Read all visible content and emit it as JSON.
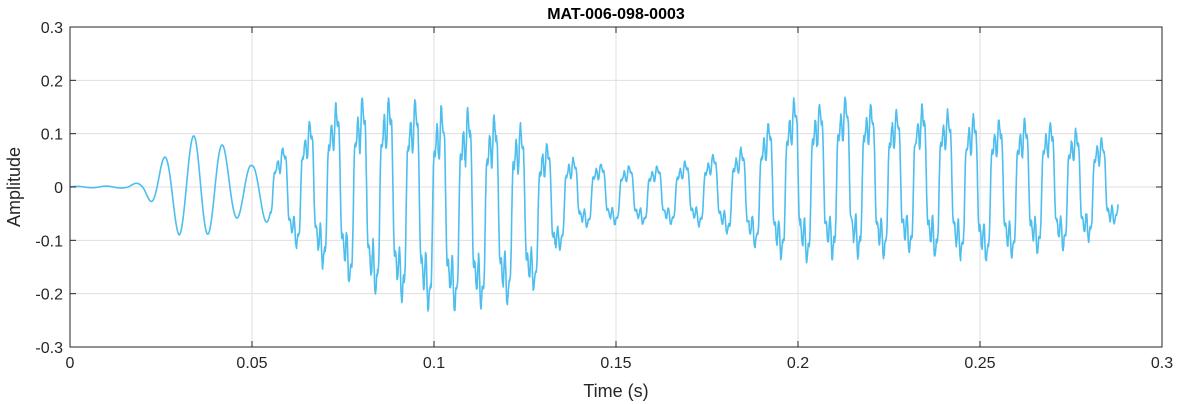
{
  "chart_data": {
    "type": "line",
    "title": "MAT-006-098-0003",
    "xlabel": "Time (s)",
    "ylabel": "Amplitude",
    "xlim": [
      0,
      0.3
    ],
    "ylim": [
      -0.3,
      0.3
    ],
    "grid": true,
    "line_color": "#4DBEEE",
    "x_ticks": [
      0,
      0.05,
      0.1,
      0.15,
      0.2,
      0.25,
      0.3
    ],
    "x_tick_labels": [
      "0",
      "0.05",
      "0.1",
      "0.15",
      "0.2",
      "0.25",
      "0.3"
    ],
    "y_ticks": [
      -0.3,
      -0.2,
      -0.1,
      0,
      0.1,
      0.2,
      0.3
    ],
    "y_tick_labels": [
      "-0.3",
      "-0.2",
      "-0.1",
      "0",
      "0.1",
      "0.2",
      "0.3"
    ],
    "series": [
      {
        "envelope": {
          "t": [
            0,
            0.015,
            0.02,
            0.025,
            0.03,
            0.035,
            0.04,
            0.045,
            0.05,
            0.055,
            0.06,
            0.065,
            0.07,
            0.075,
            0.08,
            0.085,
            0.09,
            0.095,
            0.1,
            0.105,
            0.11,
            0.115,
            0.12,
            0.125,
            0.13,
            0.135,
            0.14,
            0.145,
            0.15,
            0.155,
            0.16,
            0.165,
            0.17,
            0.175,
            0.18,
            0.185,
            0.19,
            0.195,
            0.2,
            0.205,
            0.21,
            0.215,
            0.22,
            0.225,
            0.23,
            0.235,
            0.24,
            0.245,
            0.25,
            0.255,
            0.26,
            0.265,
            0.27,
            0.275,
            0.28,
            0.285,
            0.288
          ],
          "upper": [
            0.001,
            0.002,
            0.01,
            0.05,
            0.08,
            0.1,
            0.09,
            0.06,
            0.04,
            0.06,
            0.1,
            0.14,
            0.17,
            0.19,
            0.2,
            0.21,
            0.2,
            0.2,
            0.19,
            0.18,
            0.18,
            0.17,
            0.16,
            0.14,
            0.11,
            0.08,
            0.06,
            0.055,
            0.05,
            0.05,
            0.05,
            0.05,
            0.06,
            0.07,
            0.08,
            0.09,
            0.13,
            0.16,
            0.2,
            0.18,
            0.19,
            0.2,
            0.18,
            0.17,
            0.17,
            0.18,
            0.17,
            0.16,
            0.16,
            0.15,
            0.15,
            0.15,
            0.14,
            0.13,
            0.12,
            0.1,
            0.05
          ],
          "lower": [
            -0.001,
            -0.002,
            -0.01,
            -0.05,
            -0.09,
            -0.1,
            -0.08,
            -0.06,
            -0.05,
            -0.07,
            -0.12,
            -0.15,
            -0.18,
            -0.2,
            -0.24,
            -0.24,
            -0.25,
            -0.26,
            -0.27,
            -0.27,
            -0.27,
            -0.26,
            -0.25,
            -0.24,
            -0.2,
            -0.13,
            -0.09,
            -0.08,
            -0.08,
            -0.08,
            -0.08,
            -0.08,
            -0.08,
            -0.09,
            -0.1,
            -0.12,
            -0.14,
            -0.16,
            -0.17,
            -0.17,
            -0.16,
            -0.16,
            -0.16,
            -0.16,
            -0.15,
            -0.16,
            -0.16,
            -0.16,
            -0.17,
            -0.16,
            -0.16,
            -0.15,
            -0.14,
            -0.14,
            -0.12,
            -0.1,
            -0.07
          ]
        },
        "sample_rate_hz": 12000
      }
    ]
  }
}
